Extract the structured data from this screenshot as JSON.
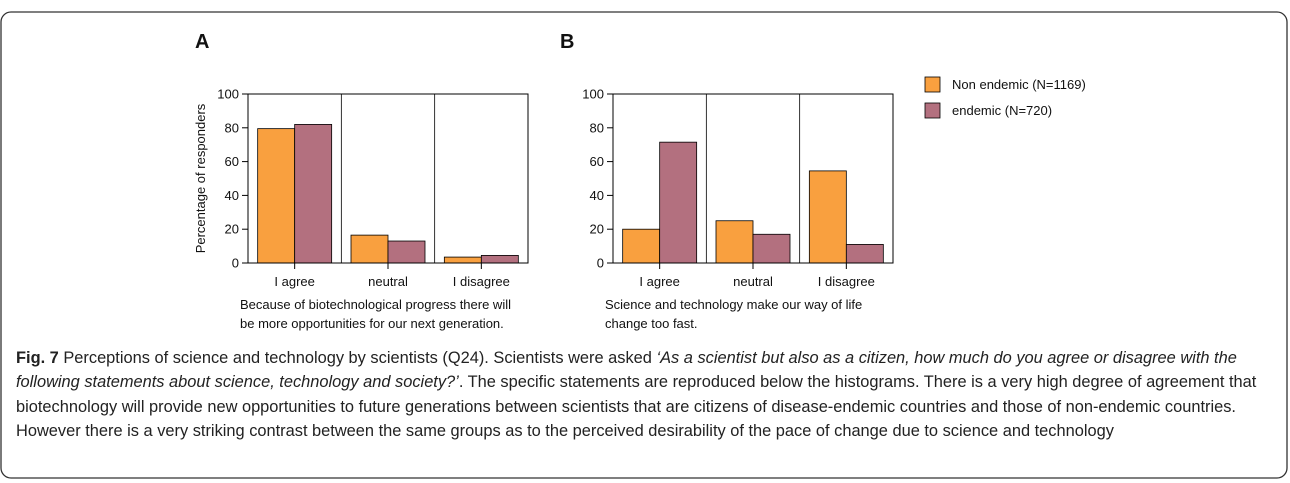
{
  "chart_data": [
    {
      "type": "bar",
      "panel": "A",
      "categories": [
        "I agree",
        "neutral",
        "I disagree"
      ],
      "series": [
        {
          "color": "#f9a03f",
          "values": [
            79.5,
            16.5,
            3.5
          ]
        },
        {
          "color": "#b3707f",
          "values": [
            82,
            13,
            4.5
          ]
        }
      ],
      "ylim": [
        0,
        100
      ],
      "yticks": [
        0,
        20,
        40,
        60,
        80,
        100
      ],
      "y_label": "Percentage of responders",
      "statement": [
        "Because of biotechnological progress there will",
        "be more opportunities for our next generation."
      ]
    },
    {
      "type": "bar",
      "panel": "B",
      "categories": [
        "I agree",
        "neutral",
        "I disagree"
      ],
      "series": [
        {
          "name": "Non endemic (N=1169)",
          "color": "#f9a03f",
          "values": [
            20,
            25,
            54.5
          ]
        },
        {
          "name": "endemic (N=720)",
          "color": "#b3707f",
          "values": [
            71.5,
            17,
            11
          ]
        }
      ],
      "ylim": [
        0,
        100
      ],
      "yticks": [
        0,
        20,
        40,
        60,
        80,
        100
      ],
      "statement": [
        "Science and technology make our way of life",
        "change too fast."
      ]
    }
  ],
  "caption": {
    "label": "Fig. 7",
    "text_before": " Perceptions of science and technology by scientists (Q24). Scientists were asked ",
    "quote": "‘As a scientist but also as a citizen, how much do you agree or disagree with the following statements about science, technology and society?’",
    "text_after": ". The specific statements are reproduced below the histograms. There is a very high degree of agreement that biotechnology will provide new opportunities to future generations between scientists that are citizens of disease-endemic countries and those of non-endemic countries. However there is a very striking contrast between the same groups as to the perceived desirability of the pace of change due to science and technology"
  }
}
